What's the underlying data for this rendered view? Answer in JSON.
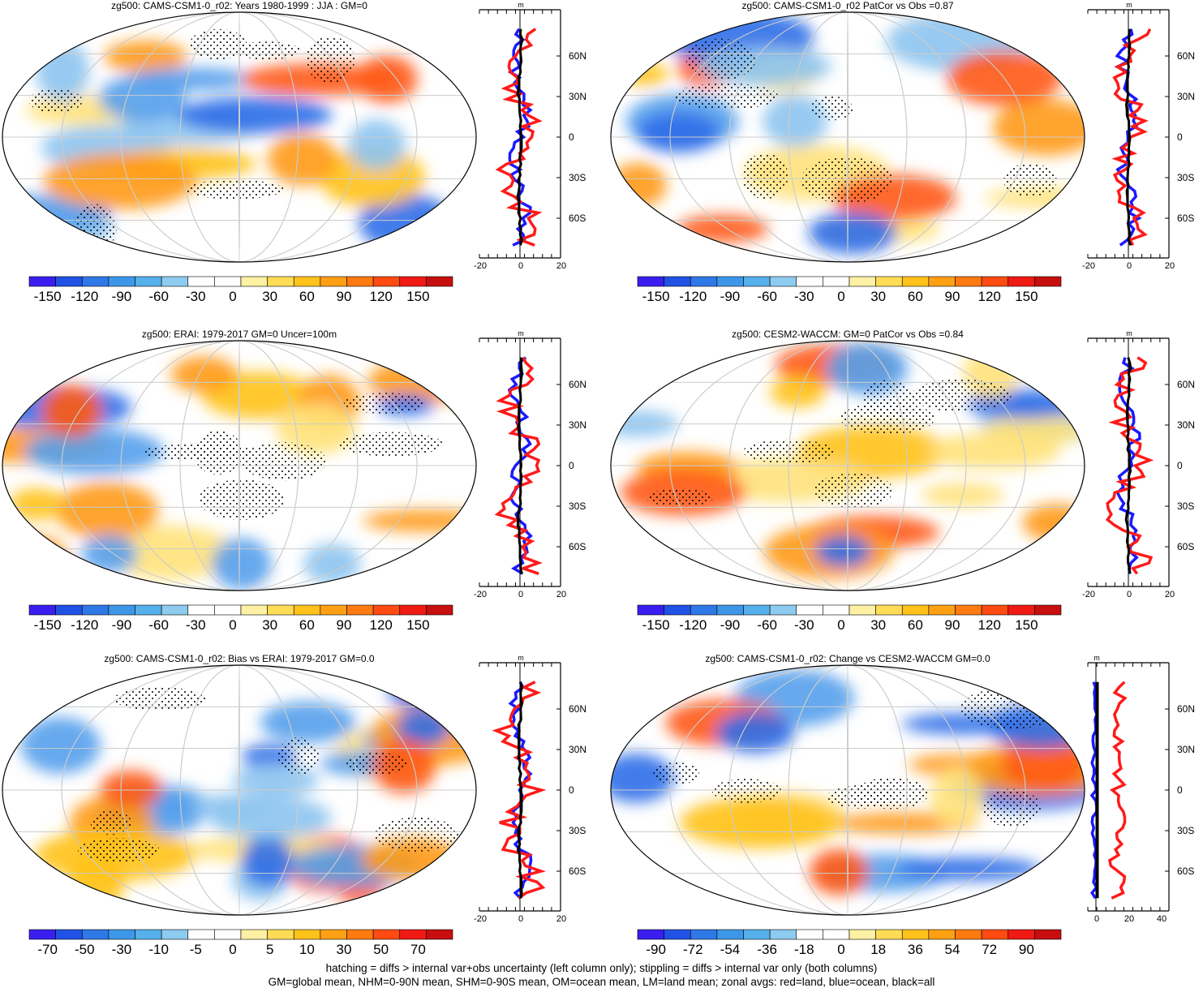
{
  "footer": {
    "line1": "hatching = diffs > internal var+obs uncertainty (left column only); stippling = diffs > internal var only (both columns)",
    "line2": "GM=global mean, NHM=0-90N mean, SHM=0-90S mean, OM=ocean mean, LM=land mean; zonal avgs: red=land, blue=ocean, black=all"
  },
  "colors": {
    "land_line": "#ff1a1a",
    "ocean_line": "#1a1aff",
    "all_line": "#000000"
  },
  "chart_data": [
    {
      "type": "heatmap",
      "title": "zg500: CAMS-CSM1-0_r02: Years 1980-1999 : JJA : GM=0",
      "colorbar_labels": [
        "-150",
        "-120",
        "-90",
        "-60",
        "-30",
        "0",
        "30",
        "60",
        "90",
        "120",
        "150"
      ],
      "zonal": {
        "xticks": [
          "-20",
          "0",
          "20"
        ],
        "unit": "m",
        "lat_labels": [
          "60N",
          "30N",
          "0",
          "30S",
          "60S"
        ],
        "xlim": [
          -20,
          20
        ]
      }
    },
    {
      "type": "heatmap",
      "title": "zg500: CAMS-CSM1-0_r02 PatCor vs Obs =0.87",
      "colorbar_labels": [
        "-150",
        "-120",
        "-90",
        "-60",
        "-30",
        "0",
        "30",
        "60",
        "90",
        "120",
        "150"
      ],
      "zonal": {
        "xticks": [
          "-20",
          "0",
          "20"
        ],
        "unit": "m",
        "lat_labels": [
          "60N",
          "30N",
          "0",
          "30S",
          "60S"
        ],
        "xlim": [
          -20,
          20
        ]
      }
    },
    {
      "type": "heatmap",
      "title": "zg500: ERAI: 1979-2017 GM=0 Uncer=100m",
      "colorbar_labels": [
        "-150",
        "-120",
        "-90",
        "-60",
        "-30",
        "0",
        "30",
        "60",
        "90",
        "120",
        "150"
      ],
      "zonal": {
        "xticks": [
          "-20",
          "0",
          "20"
        ],
        "unit": "m",
        "lat_labels": [
          "60N",
          "30N",
          "0",
          "30S",
          "60S"
        ],
        "xlim": [
          -20,
          20
        ]
      }
    },
    {
      "type": "heatmap",
      "title": "zg500: CESM2-WACCM: GM=0 PatCor vs Obs =0.84",
      "colorbar_labels": [
        "-150",
        "-120",
        "-90",
        "-60",
        "-30",
        "0",
        "30",
        "60",
        "90",
        "120",
        "150"
      ],
      "zonal": {
        "xticks": [
          "-20",
          "0",
          "20"
        ],
        "unit": "m",
        "lat_labels": [
          "60N",
          "30N",
          "0",
          "30S",
          "60S"
        ],
        "xlim": [
          -20,
          20
        ]
      }
    },
    {
      "type": "heatmap",
      "title": "zg500: CAMS-CSM1-0_r02: Bias vs ERAI: 1979-2017 GM=0.0",
      "colorbar_labels": [
        "-70",
        "-50",
        "-30",
        "-10",
        "-5",
        "0",
        "5",
        "10",
        "30",
        "50",
        "70"
      ],
      "zonal": {
        "xticks": [
          "-20",
          "0",
          "20"
        ],
        "unit": "m",
        "lat_labels": [
          "60N",
          "30N",
          "0",
          "30S",
          "60S"
        ],
        "xlim": [
          -20,
          20
        ]
      }
    },
    {
      "type": "heatmap",
      "title": "zg500: CAMS-CSM1-0_r02: Change vs CESM2-WACCM GM=0.0",
      "colorbar_labels": [
        "-90",
        "-72",
        "-54",
        "-36",
        "-18",
        "0",
        "18",
        "36",
        "54",
        "72",
        "90"
      ],
      "zonal": {
        "xticks": [
          "0",
          "20",
          "40"
        ],
        "unit": "m",
        "lat_labels": [
          "60N",
          "30N",
          "0",
          "30S",
          "60S"
        ],
        "xlim": [
          -5,
          45
        ]
      }
    }
  ]
}
